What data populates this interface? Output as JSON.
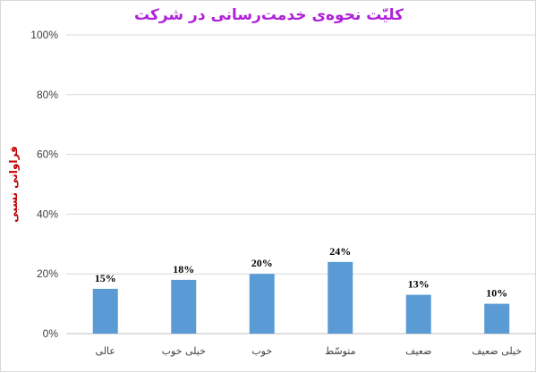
{
  "chart_data": {
    "type": "bar",
    "title": "کلیّت نحوه‌ی خدمت‌رسانی در شرکت",
    "ylabel": "فراوانی نسبی",
    "xlabel": "",
    "categories": [
      "عالی",
      "خیلی خوب",
      "خوب",
      "متوسّط",
      "ضعیف",
      "خیلی ضعیف"
    ],
    "values": [
      15,
      18,
      20,
      24,
      13,
      10
    ],
    "data_labels": [
      "15%",
      "18%",
      "20%",
      "24%",
      "13%",
      "10%"
    ],
    "ylim": [
      0,
      100
    ],
    "y_ticks": [
      0,
      20,
      40,
      60,
      80,
      100
    ],
    "y_tick_labels": [
      "0%",
      "20%",
      "40%",
      "60%",
      "80%",
      "100%"
    ],
    "grid": true,
    "legend": "none"
  },
  "colors": {
    "bar": "#5b9bd5",
    "title": "#b020d8",
    "ylabel": "#c00000",
    "grid": "#d9d9d9",
    "axis": "#bfbfbf"
  }
}
